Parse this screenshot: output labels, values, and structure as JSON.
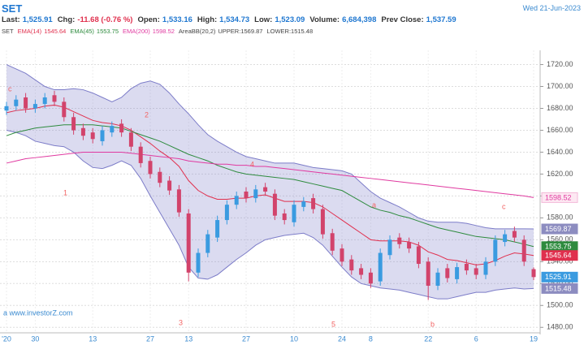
{
  "header": {
    "title": "SET",
    "date": "Wed 21-Jun-2023"
  },
  "quote": [
    {
      "label": "Last:",
      "value": "1,525.91"
    },
    {
      "label": "Chg:",
      "value": "-11.68 (-0.76 %)"
    },
    {
      "label": "Open:",
      "value": "1,533.16"
    },
    {
      "label": "High:",
      "value": "1,534.73"
    },
    {
      "label": "Low:",
      "value": "1,523.09"
    },
    {
      "label": "Volume:",
      "value": "6,684,398"
    },
    {
      "label": "Prev Close:",
      "value": "1,537.59"
    }
  ],
  "watermark": "a www.investorZ.com",
  "chart_data": {
    "type": "candlestick",
    "symbol": "SET",
    "categories": [
      "'20",
      null,
      null,
      "30",
      null,
      null,
      null,
      null,
      null,
      "13",
      null,
      null,
      null,
      null,
      null,
      "27",
      null,
      null,
      null,
      "13",
      null,
      null,
      null,
      null,
      null,
      "27",
      null,
      null,
      null,
      null,
      "10",
      null,
      null,
      null,
      null,
      "24",
      null,
      null,
      "8",
      null,
      null,
      null,
      null,
      null,
      "22",
      null,
      null,
      null,
      null,
      "6",
      null,
      null,
      null,
      null,
      null,
      "19"
    ],
    "up_color": "#3a9be0",
    "down_color": "#d2436b",
    "ohlc": {
      "open": [
        1678,
        1682,
        1690,
        1680,
        1684,
        1692,
        1686,
        1672,
        1662,
        1658,
        1650,
        1658,
        1666,
        1658,
        1645,
        1632,
        1622,
        1614,
        1606,
        1584,
        1530,
        1548,
        1562,
        1578,
        1592,
        1604,
        1598,
        1608,
        1602,
        1584,
        1576,
        1590,
        1598,
        1588,
        1566,
        1552,
        1542,
        1534,
        1530,
        1522,
        1546,
        1562,
        1558,
        1554,
        1540,
        1518,
        1534,
        1524,
        1538,
        1534,
        1528,
        1540,
        1558,
        1568,
        1560,
        1533.16
      ],
      "high": [
        1686,
        1692,
        1694,
        1688,
        1694,
        1696,
        1690,
        1676,
        1666,
        1662,
        1664,
        1668,
        1670,
        1662,
        1649,
        1636,
        1626,
        1618,
        1610,
        1588,
        1552,
        1569,
        1582,
        1596,
        1604,
        1608,
        1610,
        1612,
        1606,
        1588,
        1596,
        1599,
        1602,
        1592,
        1570,
        1556,
        1546,
        1538,
        1534,
        1552,
        1564,
        1566,
        1562,
        1558,
        1544,
        1534,
        1538,
        1539,
        1542,
        1538,
        1544,
        1564,
        1569,
        1572,
        1564,
        1534.73
      ],
      "low": [
        1674,
        1678,
        1676,
        1676,
        1680,
        1682,
        1668,
        1656,
        1651,
        1648,
        1646,
        1654,
        1654,
        1641,
        1626,
        1616,
        1608,
        1601,
        1581,
        1522,
        1526,
        1544,
        1558,
        1574,
        1588,
        1594,
        1594,
        1600,
        1578,
        1574,
        1572,
        1586,
        1584,
        1561,
        1546,
        1536,
        1528,
        1524,
        1516,
        1518,
        1542,
        1552,
        1548,
        1534,
        1505,
        1514,
        1521,
        1520,
        1528,
        1524,
        1524,
        1536,
        1554,
        1558,
        1536,
        1523.09
      ],
      "close": [
        1682,
        1688,
        1680,
        1684,
        1690,
        1686,
        1672,
        1660,
        1655,
        1652,
        1660,
        1664,
        1658,
        1645,
        1630,
        1620,
        1612,
        1605,
        1585,
        1530,
        1548,
        1565,
        1578,
        1592,
        1600,
        1598,
        1606,
        1604,
        1582,
        1578,
        1592,
        1595,
        1588,
        1565,
        1550,
        1540,
        1532,
        1528,
        1520,
        1548,
        1560,
        1556,
        1552,
        1538,
        1518,
        1530,
        1525,
        1535,
        1532,
        1528,
        1540,
        1560,
        1565,
        1562,
        1540,
        1525.91
      ]
    },
    "band": {
      "name": "AreaBB(20,2)",
      "upper_label": "UPPER:",
      "lower_label": "LOWER:",
      "color": "#7c7cc8",
      "upper": [
        1720,
        1716,
        1712,
        1706,
        1700,
        1697,
        1697,
        1698,
        1697,
        1694,
        1690,
        1686,
        1690,
        1698,
        1703,
        1705,
        1702,
        1694,
        1684,
        1675,
        1665,
        1656,
        1650,
        1645,
        1640,
        1636,
        1634,
        1632,
        1630,
        1630,
        1630,
        1628,
        1626,
        1625,
        1624,
        1623,
        1620,
        1612,
        1604,
        1598,
        1594,
        1590,
        1585,
        1580,
        1577,
        1576,
        1576,
        1576,
        1575,
        1573,
        1571,
        1570,
        1570,
        1570,
        1570,
        1569.87
      ],
      "lower": [
        1660,
        1658,
        1655,
        1650,
        1648,
        1646,
        1645,
        1640,
        1632,
        1626,
        1625,
        1628,
        1632,
        1628,
        1616,
        1600,
        1585,
        1570,
        1555,
        1535,
        1525,
        1524,
        1528,
        1535,
        1542,
        1548,
        1555,
        1560,
        1562,
        1564,
        1565,
        1566,
        1562,
        1555,
        1545,
        1535,
        1526,
        1520,
        1518,
        1516,
        1515,
        1514,
        1512,
        1510,
        1508,
        1506,
        1506,
        1508,
        1510,
        1512,
        1512,
        1514,
        1515,
        1516,
        1515,
        1515.48
      ]
    },
    "lines": [
      {
        "name": "EMA(14)",
        "color": "#e0304e",
        "values": [
          1676,
          1678,
          1679,
          1680,
          1682,
          1683,
          1681,
          1677,
          1673,
          1669,
          1667,
          1666,
          1664,
          1660,
          1654,
          1648,
          1641,
          1635,
          1627,
          1614,
          1605,
          1600,
          1597,
          1597,
          1598,
          1598,
          1600,
          1601,
          1598,
          1595,
          1595,
          1595,
          1594,
          1590,
          1584,
          1578,
          1572,
          1566,
          1560,
          1559,
          1559,
          1559,
          1558,
          1555,
          1549,
          1546,
          1542,
          1541,
          1539,
          1537,
          1538,
          1541,
          1545,
          1548,
          1547,
          1545.64
        ]
      },
      {
        "name": "EMA(45)",
        "color": "#2e8b3e",
        "values": [
          1655,
          1658,
          1660,
          1662,
          1663,
          1664,
          1665,
          1665,
          1665,
          1665,
          1664,
          1663,
          1662,
          1659,
          1656,
          1653,
          1650,
          1646,
          1642,
          1638,
          1635,
          1632,
          1628,
          1625,
          1622,
          1620,
          1619,
          1618,
          1617,
          1616,
          1615,
          1613,
          1611,
          1609,
          1607,
          1605,
          1600,
          1595,
          1590,
          1587,
          1585,
          1582,
          1580,
          1577,
          1574,
          1571,
          1569,
          1567,
          1565,
          1563,
          1562,
          1561,
          1560,
          1558,
          1556,
          1553.75
        ]
      },
      {
        "name": "EMA(200)",
        "color": "#e03aa0",
        "values": [
          1630,
          1632,
          1634,
          1635,
          1636,
          1637,
          1638,
          1639,
          1640,
          1640,
          1640,
          1640,
          1640,
          1639,
          1638,
          1637,
          1636,
          1635,
          1634,
          1632,
          1631,
          1630,
          1629,
          1629,
          1628,
          1628,
          1627,
          1627,
          1626,
          1625,
          1624,
          1623,
          1622,
          1621,
          1620,
          1619,
          1618,
          1617,
          1616,
          1615,
          1614,
          1613,
          1612,
          1611,
          1610,
          1609,
          1608,
          1607,
          1606,
          1605,
          1604,
          1603,
          1602,
          1601,
          1600,
          1598.52
        ]
      }
    ],
    "ylim": [
      1475,
      1733
    ],
    "yticks": [
      {
        "value": 1480,
        "label": "1480.00"
      },
      {
        "value": 1500,
        "label": "1500.00"
      },
      {
        "value": 1520,
        "label": "1520.00"
      },
      {
        "value": 1540,
        "label": "1540.00"
      },
      {
        "value": 1560,
        "label": "1560.00"
      },
      {
        "value": 1580,
        "label": "1580.00"
      },
      {
        "value": 1600,
        "label": "1600.00"
      },
      {
        "value": 1620,
        "label": "1620.00"
      },
      {
        "value": 1640,
        "label": "1640.00"
      },
      {
        "value": 1660,
        "label": "1660.00"
      },
      {
        "value": 1680,
        "label": "1680.00"
      },
      {
        "value": 1700,
        "label": "1700.00"
      },
      {
        "value": 1720,
        "label": "1720.00"
      }
    ],
    "grid": true,
    "annotations": [
      "c",
      "2",
      "4",
      "a",
      "c",
      "1",
      "3",
      "5",
      "b"
    ]
  }
}
